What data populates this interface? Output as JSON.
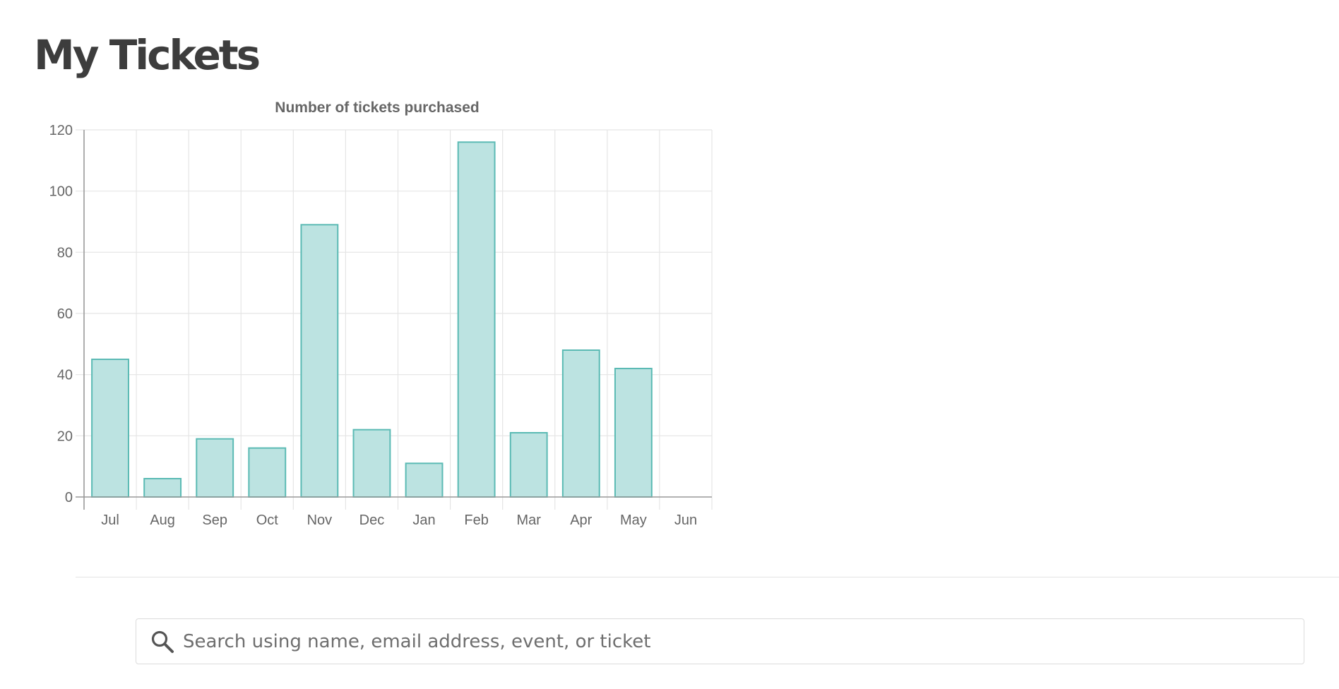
{
  "page": {
    "title": "My Tickets"
  },
  "chart_data": {
    "type": "bar",
    "title": "Number of tickets purchased",
    "categories": [
      "Jul",
      "Aug",
      "Sep",
      "Oct",
      "Nov",
      "Dec",
      "Jan",
      "Feb",
      "Mar",
      "Apr",
      "May",
      "Jun"
    ],
    "values": [
      45,
      6,
      19,
      16,
      89,
      22,
      11,
      116,
      21,
      48,
      42,
      0
    ],
    "xlabel": "",
    "ylabel": "",
    "ylim": [
      0,
      120
    ],
    "yticks": [
      0,
      20,
      40,
      60,
      80,
      100,
      120
    ],
    "grid": true,
    "bar_fill": "#bce3e1",
    "bar_stroke": "#5bbab4"
  },
  "search": {
    "placeholder": "Search using name, email address, event, or ticket",
    "icon": "search-icon"
  }
}
